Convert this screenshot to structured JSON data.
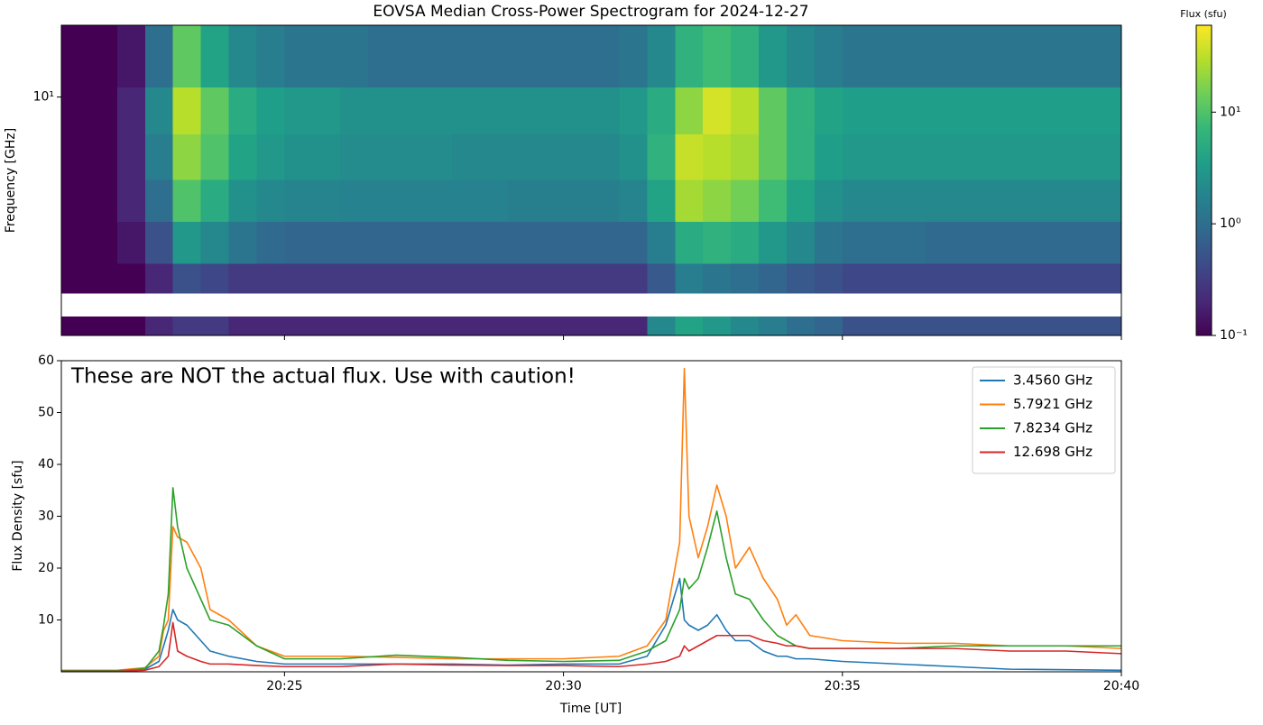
{
  "chart_data": [
    {
      "type": "heatmap",
      "title": "EOVSA Median Cross-Power Spectrogram for 2024-12-27",
      "ylabel": "Frequency [GHz]",
      "colorbar_label": "Flux (sfu)",
      "colormap": "viridis",
      "yscale": "log",
      "ylim": [
        1,
        20
      ],
      "yticks": [
        {
          "value": 10,
          "label": "10¹"
        }
      ],
      "clim": [
        0.1,
        60
      ],
      "cticks": [
        {
          "value": 0.1,
          "label": "10⁻¹"
        },
        {
          "value": 1,
          "label": "10⁰"
        },
        {
          "value": 10,
          "label": "10¹"
        }
      ],
      "x": [
        "20:21:00",
        "20:21:30",
        "20:22:00",
        "20:22:30",
        "20:23:00",
        "20:23:30",
        "20:24:00",
        "20:24:30",
        "20:25:00",
        "20:25:30",
        "20:26:00",
        "20:26:30",
        "20:27:00",
        "20:27:30",
        "20:28:00",
        "20:28:30",
        "20:29:00",
        "20:29:30",
        "20:30:00",
        "20:30:30",
        "20:31:00",
        "20:31:30",
        "20:32:00",
        "20:32:30",
        "20:33:00",
        "20:33:30",
        "20:34:00",
        "20:34:30",
        "20:35:00",
        "20:35:30",
        "20:36:00",
        "20:36:30",
        "20:37:00",
        "20:37:30",
        "20:38:00",
        "20:38:30",
        "20:39:00",
        "20:39:30",
        "20:40:00"
      ],
      "y": [
        1,
        1.2,
        1.5,
        2,
        3,
        4.5,
        7,
        11,
        20
      ],
      "z": [
        [
          0.1,
          0.1,
          0.1,
          0.2,
          0.3,
          0.3,
          0.2,
          0.2,
          0.2,
          0.2,
          0.2,
          0.2,
          0.2,
          0.2,
          0.2,
          0.2,
          0.2,
          0.2,
          0.2,
          0.2,
          0.2,
          2,
          4,
          3,
          2,
          1.5,
          1,
          0.8,
          0.5,
          0.5,
          0.5,
          0.5,
          0.5,
          0.5,
          0.5,
          0.5,
          0.5,
          0.5
        ],
        [
          null,
          null,
          null,
          null,
          null,
          null,
          null,
          null,
          null,
          null,
          null,
          null,
          null,
          null,
          null,
          null,
          null,
          null,
          null,
          null,
          null,
          null,
          null,
          null,
          null,
          null,
          null,
          null,
          null,
          null,
          null,
          null,
          null,
          null,
          null,
          null,
          null,
          null
        ],
        [
          0.1,
          0.1,
          0.1,
          0.2,
          0.5,
          0.4,
          0.3,
          0.3,
          0.3,
          0.3,
          0.3,
          0.3,
          0.3,
          0.3,
          0.3,
          0.3,
          0.3,
          0.3,
          0.3,
          0.3,
          0.3,
          0.6,
          1.5,
          1.2,
          1,
          0.8,
          0.6,
          0.5,
          0.4,
          0.4,
          0.4,
          0.4,
          0.4,
          0.4,
          0.4,
          0.4,
          0.4,
          0.4
        ],
        [
          0.1,
          0.1,
          0.15,
          0.5,
          3,
          2,
          1.2,
          0.9,
          0.8,
          0.8,
          0.8,
          0.8,
          0.8,
          0.8,
          0.8,
          0.8,
          0.8,
          0.8,
          0.8,
          0.8,
          0.8,
          1.5,
          5,
          6,
          5,
          3,
          2,
          1.2,
          1,
          1,
          1,
          0.9,
          0.9,
          0.9,
          0.9,
          0.9,
          0.9,
          0.9
        ],
        [
          0.1,
          0.1,
          0.2,
          1,
          10,
          5,
          2.5,
          2,
          1.8,
          1.8,
          1.7,
          1.7,
          1.7,
          1.7,
          1.7,
          1.7,
          1.6,
          1.6,
          1.6,
          1.6,
          1.8,
          4,
          25,
          20,
          15,
          8,
          4,
          2.5,
          2,
          2,
          2,
          2,
          2,
          2,
          2,
          2,
          2,
          2
        ],
        [
          0.1,
          0.1,
          0.2,
          1.5,
          20,
          10,
          4,
          3,
          2.5,
          2.5,
          2.2,
          2.2,
          2.2,
          2.2,
          2,
          2,
          2,
          2,
          2,
          2,
          2.5,
          6,
          35,
          30,
          25,
          12,
          6,
          3.5,
          3,
          3,
          3,
          3,
          3,
          3,
          3,
          3,
          3,
          3
        ],
        [
          0.1,
          0.1,
          0.2,
          2,
          30,
          12,
          5,
          3.5,
          3,
          3,
          2.5,
          2.5,
          2.5,
          2.5,
          2.5,
          2.5,
          2.5,
          2.5,
          2.5,
          2.5,
          3,
          5,
          20,
          40,
          30,
          12,
          6,
          4,
          3.5,
          3.5,
          3.5,
          3.5,
          3.5,
          3.5,
          3.5,
          3.5,
          3.5,
          3.5
        ],
        [
          0.1,
          0.1,
          0.15,
          1,
          12,
          4,
          2,
          1.5,
          1.2,
          1.2,
          1.2,
          1,
          1,
          1,
          1,
          1,
          1,
          1,
          1,
          1,
          1.2,
          2,
          6,
          8,
          6,
          3,
          2,
          1.5,
          1.2,
          1.2,
          1.2,
          1.2,
          1.2,
          1.2,
          1.2,
          1.2,
          1.2,
          1.2
        ]
      ]
    },
    {
      "type": "line",
      "xlabel": "Time [UT]",
      "ylabel": "Flux Density [sfu]",
      "annotation": "These are NOT the actual flux. Use with caution!",
      "legend": "upper right",
      "xlim": [
        "20:21",
        "20:40"
      ],
      "xticks": [
        "20:25",
        "20:30",
        "20:35",
        "20:40"
      ],
      "ylim": [
        0,
        60
      ],
      "yticks": [
        10,
        20,
        30,
        40,
        50,
        60
      ],
      "x": [
        "20:21:00",
        "20:22:00",
        "20:22:30",
        "20:22:45",
        "20:22:50",
        "20:22:55",
        "20:23:00",
        "20:23:05",
        "20:23:15",
        "20:23:30",
        "20:23:40",
        "20:24:00",
        "20:24:30",
        "20:25:00",
        "20:26:00",
        "20:27:00",
        "20:28:00",
        "20:29:00",
        "20:30:00",
        "20:31:00",
        "20:31:30",
        "20:31:50",
        "20:32:05",
        "20:32:10",
        "20:32:15",
        "20:32:25",
        "20:32:35",
        "20:32:45",
        "20:32:55",
        "20:33:05",
        "20:33:20",
        "20:33:35",
        "20:33:50",
        "20:34:00",
        "20:34:10",
        "20:34:25",
        "20:35:00",
        "20:36:00",
        "20:37:00",
        "20:38:00",
        "20:39:00",
        "20:40:00"
      ],
      "series": [
        {
          "name": "3.4560 GHz",
          "color": "#1f77b4",
          "values": [
            0.2,
            0.2,
            0.5,
            2,
            5,
            8,
            12,
            10,
            9,
            6,
            4,
            3,
            2,
            1.5,
            1.5,
            1.5,
            1.5,
            1.3,
            1.5,
            1.5,
            3,
            9,
            18,
            10,
            9,
            8,
            9,
            11,
            8,
            6,
            6,
            4,
            3,
            3,
            2.5,
            2.5,
            2,
            1.5,
            1,
            0.5,
            0.4,
            0.3
          ]
        },
        {
          "name": "5.7921 GHz",
          "color": "#ff7f0e",
          "values": [
            0.3,
            0.3,
            0.8,
            3,
            8,
            10,
            28,
            26,
            25,
            20,
            12,
            10,
            5,
            3,
            3,
            2.8,
            2.5,
            2.5,
            2.5,
            3,
            5,
            10,
            25,
            58.5,
            30,
            22,
            28,
            36,
            30,
            20,
            24,
            18,
            14,
            9,
            11,
            7,
            6,
            5.5,
            5.5,
            5,
            5,
            4.5
          ]
        },
        {
          "name": "7.8234 GHz",
          "color": "#2ca02c",
          "values": [
            0.2,
            0.2,
            0.6,
            4,
            9,
            15,
            35.5,
            28,
            20,
            14,
            10,
            9,
            5,
            2.5,
            2.5,
            3.2,
            2.8,
            2.2,
            2,
            2.2,
            4,
            6,
            12,
            18,
            16,
            18,
            24,
            31,
            22,
            15,
            14,
            10,
            7,
            6,
            5,
            4.5,
            4.5,
            4.5,
            5,
            5,
            5,
            5
          ]
        },
        {
          "name": "12.698 GHz",
          "color": "#d62728",
          "values": [
            0.1,
            0.1,
            0.3,
            1,
            2,
            3,
            9.5,
            4,
            3,
            2,
            1.5,
            1.5,
            1.2,
            1,
            1,
            1.5,
            1.3,
            1.2,
            1.2,
            1,
            1.5,
            2,
            3,
            5,
            4,
            5,
            6,
            7,
            7,
            7,
            7,
            6,
            5.5,
            5,
            5,
            4.5,
            4.5,
            4.5,
            4.5,
            4,
            4,
            3.5
          ]
        }
      ]
    }
  ]
}
